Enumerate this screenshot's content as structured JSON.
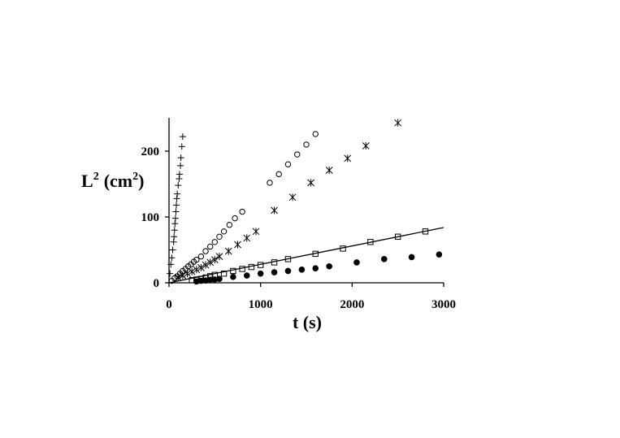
{
  "chart_data": {
    "type": "scatter",
    "title": "",
    "xlabel": "t (s)",
    "ylabel": "L",
    "ylabel_sup": "2",
    "ylabel_unit": "(cm",
    "ylabel_unit_sup": "2",
    "ylabel_unit_close": ")",
    "xlim": [
      0,
      3000
    ],
    "ylim": [
      0,
      250
    ],
    "xticks": [
      0,
      1000,
      2000,
      3000
    ],
    "yticks": [
      0,
      100,
      200
    ],
    "xtick_labels": [
      "0",
      "1000",
      "2000",
      "3000"
    ],
    "ytick_labels": [
      "0",
      "100",
      "200"
    ],
    "grid": false,
    "legend": "none",
    "series": [
      {
        "marker": "plus",
        "x": [
          0,
          10,
          20,
          30,
          40,
          50,
          55,
          60,
          65,
          70,
          75,
          80,
          85,
          90,
          100,
          110,
          115,
          125,
          130,
          140,
          150
        ],
        "y": [
          0,
          14,
          28,
          38,
          50,
          62,
          70,
          80,
          90,
          98,
          108,
          118,
          128,
          135,
          148,
          158,
          165,
          178,
          190,
          207,
          222
        ]
      },
      {
        "marker": "circle",
        "x": [
          30,
          60,
          90,
          120,
          150,
          180,
          210,
          240,
          270,
          300,
          350,
          400,
          450,
          500,
          550,
          600,
          660,
          720,
          800,
          1100,
          1200,
          1300,
          1400,
          1500,
          1600
        ],
        "y": [
          3,
          7,
          10,
          14,
          18,
          21,
          25,
          28,
          32,
          35,
          40,
          48,
          55,
          62,
          70,
          78,
          88,
          98,
          108,
          152,
          165,
          180,
          195,
          210,
          226
        ]
      },
      {
        "marker": "asterisk",
        "x": [
          100,
          150,
          200,
          250,
          300,
          350,
          400,
          450,
          500,
          550,
          650,
          750,
          850,
          950,
          1150,
          1350,
          1550,
          1750,
          1950,
          2150,
          2500
        ],
        "y": [
          8,
          11,
          14,
          17,
          20,
          23,
          27,
          31,
          35,
          40,
          48,
          58,
          68,
          78,
          110,
          130,
          152,
          171,
          189,
          208,
          243
        ]
      },
      {
        "marker": "square",
        "x": [
          250,
          300,
          350,
          400,
          450,
          500,
          600,
          700,
          800,
          900,
          1000,
          1150,
          1300,
          1600,
          1900,
          2200,
          2500,
          2800
        ],
        "y": [
          4,
          5,
          6,
          8,
          10,
          12,
          14,
          18,
          21,
          24,
          27,
          31,
          36,
          44,
          52,
          62,
          70,
          78
        ]
      },
      {
        "marker": "filled-circle",
        "x": [
          300,
          350,
          400,
          450,
          500,
          550,
          700,
          850,
          1000,
          1150,
          1300,
          1450,
          1600,
          1750,
          2050,
          2350,
          2650,
          2950
        ],
        "y": [
          2,
          3,
          3.5,
          4.5,
          5,
          6,
          9,
          11,
          14,
          16,
          18,
          20,
          22,
          25,
          31,
          36,
          39,
          43
        ]
      }
    ],
    "fit_line": {
      "x": [
        0,
        3000
      ],
      "y": [
        0,
        84
      ]
    }
  }
}
